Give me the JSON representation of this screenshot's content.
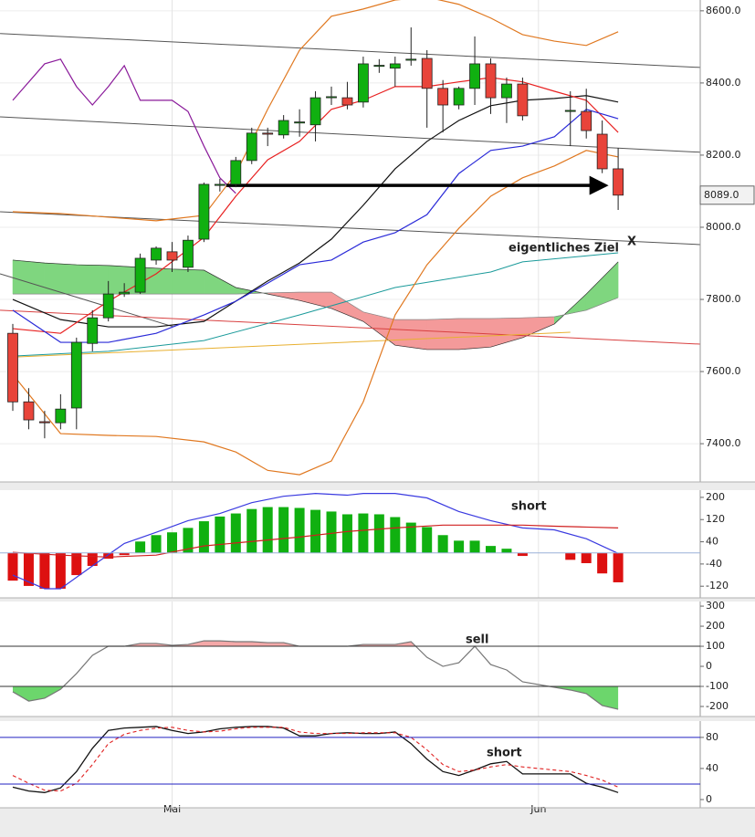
{
  "chart_data": [
    {
      "type": "candlestick",
      "ylim": [
        7294,
        8630
      ],
      "grid": true,
      "yticks": [
        {
          "value": 8600,
          "label": "8600.0"
        },
        {
          "value": 8400,
          "label": "8400.0"
        },
        {
          "value": 8200,
          "label": "8200.0"
        },
        {
          "value": 8000,
          "label": "8000.0"
        },
        {
          "value": 7800,
          "label": "7800.0"
        },
        {
          "value": 7600,
          "label": "7600.0"
        },
        {
          "value": 7400,
          "label": "7400.0"
        }
      ],
      "up_color": "#10b010",
      "down_color": "#e8443a",
      "open": [
        7706,
        7516,
        7461,
        7458,
        7499,
        7678,
        7749,
        7815,
        7820,
        7909,
        7932,
        7889,
        7967,
        8116,
        8119,
        8185,
        8261,
        8256,
        8289,
        8284,
        8359,
        8359,
        8347,
        8446,
        8441,
        8463,
        8468,
        8385,
        8339,
        8385,
        8453,
        8359,
        8397,
        null,
        null,
        8321,
        8321,
        8258,
        8162
      ],
      "high": [
        7732,
        7554,
        7491,
        7537,
        7694,
        7770,
        7851,
        7845,
        7927,
        7947,
        7959,
        7977,
        8124,
        8134,
        8195,
        8276,
        8276,
        8311,
        8327,
        8377,
        8390,
        8403,
        8473,
        8466,
        8473,
        8554,
        8491,
        8408,
        8390,
        8529,
        8468,
        8415,
        8415,
        null,
        null,
        8377,
        8384,
        8296,
        8220
      ],
      "low": [
        7491,
        7440,
        7415,
        7440,
        7440,
        7656,
        7739,
        7807,
        7815,
        7896,
        7876,
        7876,
        7959,
        8099,
        8111,
        8175,
        8225,
        8246,
        8251,
        8238,
        8339,
        8327,
        8332,
        8428,
        8390,
        8448,
        8276,
        8263,
        8327,
        8339,
        8314,
        8289,
        8296,
        null,
        null,
        8225,
        8246,
        8150,
        8048
      ],
      "close": [
        7516,
        7466,
        7458,
        7496,
        7681,
        7749,
        7815,
        7820,
        7914,
        7942,
        7909,
        7964,
        8119,
        8119,
        8185,
        8261,
        8258,
        8296,
        8292,
        8359,
        8362,
        8339,
        8453,
        8449,
        8453,
        8466,
        8385,
        8339,
        8385,
        8453,
        8359,
        8397,
        8309,
        null,
        null,
        8324,
        8268,
        8162,
        8089
      ],
      "last_price": {
        "value": 8089,
        "label": "8089.0"
      },
      "cloud": {
        "x": [
          0,
          2,
          4,
          6,
          8,
          10,
          12,
          14,
          16,
          18,
          20,
          22,
          24,
          26,
          28,
          30,
          32,
          34,
          36,
          38
        ],
        "span_a": [
          7909,
          7901,
          7896,
          7894,
          7889,
          7884,
          7881,
          7833,
          7815,
          7797,
          7775,
          7739,
          7673,
          7661,
          7661,
          7668,
          7694,
          7732,
          7815,
          7904
        ],
        "span_b": [
          7815,
          7815,
          7815,
          7815,
          7815,
          7815,
          7815,
          7815,
          7818,
          7820,
          7820,
          7765,
          7744,
          7744,
          7747,
          7747,
          7749,
          7752,
          7770,
          7805
        ],
        "colors": [
          "#7fd67f",
          "#f49a9a"
        ]
      },
      "series": [
        {
          "color": "#555555",
          "width": 1,
          "x": [
            -0.8,
            43.15
          ],
          "values": [
            8537,
            8443
          ]
        },
        {
          "color": "#555555",
          "width": 1,
          "x": [
            -0.8,
            43.15
          ],
          "values": [
            8306,
            8208
          ]
        },
        {
          "color": "#555555",
          "width": 1,
          "x": [
            -0.8,
            43.15
          ],
          "values": [
            8043,
            7952
          ]
        },
        {
          "color": "#555555",
          "width": 1,
          "x": [
            -0.8,
            10.1
          ],
          "values": [
            7871,
            7724
          ]
        },
        {
          "color": "#d84040",
          "width": 1,
          "x": [
            -0.8,
            43.15
          ],
          "values": [
            7770,
            7676
          ]
        },
        {
          "color": "#e8b030",
          "width": 1,
          "x": [
            0,
            35
          ],
          "values": [
            7640,
            7709
          ]
        },
        {
          "color": "#1a9a9a",
          "width": 1,
          "x": [
            0,
            6,
            12,
            18,
            24,
            30,
            32,
            38
          ],
          "values": [
            7643,
            7656,
            7686,
            7757,
            7833,
            7876,
            7904,
            7929
          ]
        },
        {
          "color": "#e07820",
          "width": 1.2,
          "x": [
            0,
            3,
            6,
            9,
            12,
            14,
            16,
            18,
            20,
            22,
            24,
            26,
            28,
            30,
            32,
            34,
            36,
            38
          ],
          "values": [
            8043,
            8038,
            8028,
            8018,
            8033,
            8149,
            8327,
            8491,
            8585,
            8605,
            8630,
            8638,
            8618,
            8580,
            8534,
            8516,
            8504,
            8542
          ]
        },
        {
          "color": "#e07820",
          "width": 1.2,
          "x": [
            0,
            3,
            6,
            9,
            12,
            14,
            16,
            18,
            20,
            22,
            24,
            26,
            28,
            30,
            32,
            34,
            36,
            38
          ],
          "values": [
            7592,
            7428,
            7423,
            7420,
            7405,
            7377,
            7326,
            7314,
            7352,
            7516,
            7757,
            7896,
            7997,
            8086,
            8137,
            8170,
            8213,
            8195
          ]
        },
        {
          "color": "#111111",
          "width": 1.2,
          "x": [
            0,
            3,
            6,
            9,
            12,
            14,
            16,
            18,
            20,
            22,
            24,
            26,
            28,
            30,
            32,
            34,
            36,
            38
          ],
          "values": [
            7800,
            7744,
            7724,
            7724,
            7739,
            7795,
            7851,
            7901,
            7967,
            8061,
            8162,
            8238,
            8296,
            8337,
            8352,
            8357,
            8365,
            8347
          ]
        },
        {
          "color": "#e82020",
          "width": 1.2,
          "x": [
            0,
            3,
            6,
            9,
            12,
            14,
            16,
            18,
            20,
            22,
            24,
            26,
            28,
            30,
            32,
            34,
            36,
            38
          ],
          "values": [
            7719,
            7706,
            7795,
            7871,
            7972,
            8086,
            8187,
            8238,
            8327,
            8352,
            8390,
            8390,
            8403,
            8415,
            8403,
            8377,
            8352,
            8263
          ]
        },
        {
          "color": "#2a2ad8",
          "width": 1.2,
          "x": [
            0,
            3,
            6,
            9,
            12,
            14,
            16,
            18,
            20,
            22,
            24,
            26,
            28,
            30,
            32,
            34,
            36,
            38
          ],
          "values": [
            7770,
            7681,
            7681,
            7706,
            7757,
            7795,
            7845,
            7896,
            7909,
            7959,
            7985,
            8035,
            8149,
            8213,
            8225,
            8251,
            8327,
            8301
          ]
        },
        {
          "color": "#8a1a9a",
          "width": 1.2,
          "x": [
            0,
            2,
            3,
            4,
            5,
            6,
            7,
            8,
            10,
            11,
            12,
            13,
            14
          ],
          "values": [
            8352,
            8453,
            8466,
            8390,
            8339,
            8390,
            8448,
            8352,
            8352,
            8321,
            8225,
            8137,
            8094
          ]
        },
        {
          "color": "#000000",
          "width": 3.5,
          "arrow": true,
          "x": [
            13.4,
            37
          ],
          "values": [
            8116,
            8116
          ]
        }
      ],
      "annotations": [
        "eigentliches Ziel",
        "X"
      ]
    },
    {
      "type": "bar",
      "ylim": [
        -162,
        226
      ],
      "yticks": [
        200,
        120,
        40,
        -40,
        -120
      ],
      "levels": [
        0
      ],
      "level_color": "#9ab0d8",
      "up_color": "#10b010",
      "down_color": "#dd1010",
      "values": [
        -100,
        -119,
        -129,
        -129,
        -80,
        -47,
        -21,
        -8,
        41,
        64,
        74,
        90,
        114,
        131,
        142,
        158,
        165,
        165,
        162,
        155,
        149,
        139,
        142,
        139,
        129,
        109,
        93,
        64,
        44,
        44,
        25,
        15,
        -11,
        null,
        null,
        -25,
        -37,
        -74,
        -106
      ],
      "series": [
        {
          "color": "#3a3ae0",
          "width": 1.2,
          "x": [
            0,
            2,
            3,
            5,
            7,
            9,
            11,
            13,
            15,
            17,
            19,
            21,
            22,
            24,
            26,
            28,
            30,
            32,
            34,
            36,
            38
          ],
          "values": [
            -80,
            -129,
            -129,
            -47,
            34,
            74,
            116,
            142,
            181,
            204,
            214,
            208,
            214,
            214,
            198,
            149,
            116,
            90,
            83,
            51,
            -2
          ]
        },
        {
          "color": "#d02020",
          "width": 1.2,
          "x": [
            0,
            3,
            6,
            9,
            12,
            15,
            18,
            21,
            24,
            27,
            30,
            32,
            34,
            36,
            38
          ],
          "values": [
            2,
            -8,
            -15,
            -8,
            25,
            41,
            57,
            77,
            90,
            100,
            100,
            100,
            96,
            93,
            90
          ]
        }
      ],
      "annotations": [
        "short"
      ]
    },
    {
      "type": "line",
      "ylim": [
        -250,
        323
      ],
      "yticks": [
        300,
        200,
        100,
        0,
        -100,
        -200
      ],
      "levels": [
        100,
        -100
      ],
      "level_color": "#333333",
      "fill_above": {
        "level": 100,
        "color": "#f4a8a8"
      },
      "fill_below": {
        "level": -100,
        "color": "#6cd66c"
      },
      "series": [
        {
          "color": "#777777",
          "width": 1.2,
          "x": [
            0,
            1,
            2,
            3,
            4,
            5,
            6,
            7,
            8,
            9,
            10,
            11,
            12,
            13,
            14,
            15,
            16,
            17,
            18,
            19,
            20,
            21,
            22,
            23,
            24,
            25,
            26,
            27,
            28,
            29,
            30,
            31,
            32,
            35,
            36,
            37,
            38
          ],
          "values": [
            -127,
            -173,
            -159,
            -114,
            -36,
            55,
            100,
            100,
            114,
            114,
            105,
            109,
            127,
            127,
            123,
            123,
            118,
            118,
            100,
            100,
            100,
            100,
            109,
            109,
            109,
            123,
            45,
            0,
            18,
            100,
            9,
            -18,
            -77,
            -118,
            -136,
            -195,
            -214
          ]
        }
      ],
      "annotations": [
        "sell"
      ]
    },
    {
      "type": "line",
      "ylim": [
        -10.6,
        101
      ],
      "yticks": [
        80,
        40,
        0
      ],
      "levels": [
        80,
        20
      ],
      "level_color": "#2020c0",
      "categories": [
        null,
        null,
        null,
        null,
        null,
        null,
        null,
        null,
        null,
        null,
        "Mai",
        null,
        null,
        null,
        null,
        null,
        null,
        null,
        null,
        null,
        null,
        null,
        null,
        null,
        null,
        null,
        null,
        null,
        null,
        null,
        null,
        null,
        null,
        "Jun",
        null,
        null,
        null,
        null,
        null
      ],
      "series": [
        {
          "color": "#111111",
          "width": 1.3,
          "x": [
            0,
            1,
            2,
            3,
            4,
            5,
            6,
            7,
            8,
            9,
            10,
            11,
            12,
            13,
            14,
            15,
            16,
            17,
            18,
            19,
            20,
            21,
            22,
            23,
            24,
            25,
            26,
            27,
            28,
            29,
            30,
            31,
            32,
            35,
            36,
            37,
            38
          ],
          "values": [
            16,
            11,
            9,
            15,
            36,
            66,
            89,
            92,
            93,
            94,
            89,
            85,
            87,
            91,
            93,
            94,
            94,
            92,
            82,
            82,
            85,
            86,
            85,
            85,
            87,
            72,
            52,
            36,
            31,
            38,
            46,
            49,
            33,
            33,
            21,
            16,
            9
          ]
        },
        {
          "color": "#e02020",
          "width": 1.1,
          "dash": true,
          "x": [
            0,
            1,
            2,
            3,
            4,
            5,
            6,
            7,
            8,
            9,
            10,
            11,
            12,
            13,
            14,
            15,
            16,
            17,
            18,
            19,
            20,
            21,
            22,
            23,
            24,
            25,
            26,
            27,
            28,
            29,
            30,
            31,
            32,
            35,
            36,
            37,
            38
          ],
          "values": [
            31,
            21,
            12,
            11,
            21,
            45,
            72,
            84,
            89,
            92,
            93,
            89,
            87,
            88,
            91,
            93,
            93,
            93,
            87,
            85,
            85,
            85,
            86,
            86,
            86,
            80,
            64,
            45,
            36,
            38,
            42,
            45,
            42,
            36,
            31,
            25,
            16
          ]
        }
      ],
      "annotations": [
        "short"
      ]
    }
  ]
}
